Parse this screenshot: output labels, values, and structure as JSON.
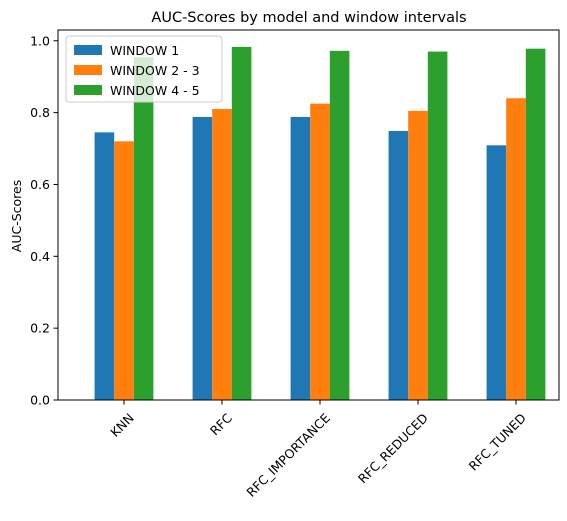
{
  "chart_data": {
    "type": "bar",
    "title": "AUC-Scores by model and window intervals",
    "xlabel": "",
    "ylabel": "AUC-Scores",
    "ylim": [
      0,
      1.03
    ],
    "yticks": [
      0.0,
      0.2,
      0.4,
      0.6,
      0.8,
      1.0
    ],
    "ytick_labels": [
      "0.0",
      "0.2",
      "0.4",
      "0.6",
      "0.8",
      "1.0"
    ],
    "categories": [
      "KNN",
      "RFC",
      "RFC_IMPORTANCE",
      "RFC_REDUCED",
      "RFC_TUNED"
    ],
    "series": [
      {
        "name": "WINDOW 1",
        "color": "#1f77b4",
        "values": [
          0.745,
          0.788,
          0.788,
          0.749,
          0.709
        ]
      },
      {
        "name": "WINDOW 2 - 3",
        "color": "#ff7f0e",
        "values": [
          0.72,
          0.81,
          0.825,
          0.805,
          0.84
        ]
      },
      {
        "name": "WINDOW 4 - 5",
        "color": "#2ca02c",
        "values": [
          0.955,
          0.983,
          0.972,
          0.97,
          0.978
        ]
      }
    ],
    "legend": {
      "position": "top-left"
    },
    "grid": false,
    "xtick_rotation": 45
  }
}
